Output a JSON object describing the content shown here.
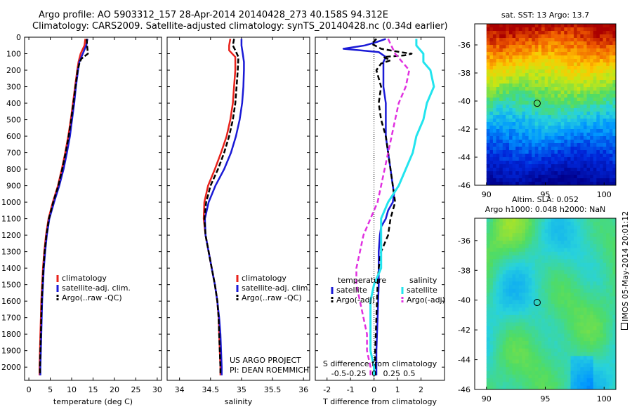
{
  "header": {
    "title_line1": "Argo profile: AO 5903312_157 28-Apr-2014 20140428_273 40.158S 94.312E",
    "title_line2": "Climatology: CARS2009. Satellite-adjusted climatology: synTS_20140428.nc (0.34d earlier)"
  },
  "colors": {
    "climatology": "#e8221b",
    "satellite": "#1a1ad6",
    "argo": "#000000",
    "cyan": "#22e4ee",
    "magenta": "#e030e0"
  },
  "chart_data": [
    {
      "type": "line",
      "panel": "temperature",
      "xlabel": "temperature (deg C)",
      "ylabel": "",
      "xlim": [
        -1,
        31
      ],
      "ylim": [
        2080,
        0
      ],
      "y_reversed": true,
      "xticks": [
        0,
        5,
        10,
        15,
        20,
        25,
        30
      ],
      "yticks": [
        0,
        100,
        200,
        300,
        400,
        500,
        600,
        700,
        800,
        900,
        1000,
        1100,
        1200,
        1300,
        1400,
        1500,
        1600,
        1700,
        1800,
        1900,
        2000
      ],
      "legend": [
        "climatology",
        "satellite-adj. clim.",
        "Argo(..raw -QC)"
      ],
      "series": [
        {
          "name": "climatology",
          "y": [
            10,
            50,
            100,
            150,
            200,
            300,
            400,
            500,
            600,
            700,
            800,
            900,
            1000,
            1100,
            1200,
            1300,
            1400,
            1500,
            1600,
            1700,
            1800,
            1900,
            2000,
            2050
          ],
          "x": [
            13.2,
            13.0,
            12.1,
            11.6,
            11.3,
            10.8,
            10.3,
            9.8,
            9.2,
            8.5,
            7.7,
            6.8,
            5.6,
            4.6,
            4.0,
            3.6,
            3.3,
            3.1,
            2.9,
            2.8,
            2.7,
            2.6,
            2.5,
            2.5
          ]
        },
        {
          "name": "satellite-adj. clim.",
          "y": [
            10,
            50,
            100,
            150,
            200,
            300,
            400,
            500,
            600,
            700,
            800,
            900,
            1000,
            1100,
            1200,
            1300,
            1400,
            1500,
            1600,
            1700,
            1800,
            1900,
            2000,
            2050
          ],
          "x": [
            13.7,
            13.4,
            12.6,
            11.8,
            11.5,
            11.0,
            10.6,
            10.1,
            9.6,
            8.9,
            8.1,
            7.1,
            5.9,
            4.8,
            4.2,
            3.8,
            3.5,
            3.3,
            3.1,
            3.0,
            2.9,
            2.8,
            2.7,
            2.7
          ]
        },
        {
          "name": "Argo(..raw -QC)",
          "y": [
            10,
            50,
            100,
            130,
            150,
            200,
            300,
            400,
            500,
            600,
            700,
            800,
            900,
            1000,
            1100,
            1200,
            1300,
            1400,
            1500,
            1600,
            1700,
            1800,
            1900,
            2000,
            2050
          ],
          "x": [
            13.5,
            13.6,
            13.8,
            12.3,
            11.9,
            11.4,
            10.9,
            10.4,
            9.9,
            9.3,
            8.6,
            7.8,
            6.9,
            5.7,
            4.7,
            4.1,
            3.7,
            3.4,
            3.2,
            3.0,
            2.9,
            2.8,
            2.7,
            2.6,
            2.6
          ]
        }
      ]
    },
    {
      "type": "line",
      "panel": "salinity",
      "xlabel": "salinity",
      "xlim": [
        33.8,
        36.1
      ],
      "ylim": [
        2080,
        0
      ],
      "y_reversed": true,
      "xticks": [
        34,
        34.5,
        35,
        35.5,
        36
      ],
      "legend": [
        "climatology",
        "satellite-adj. clim.",
        "Argo(..raw -QC)"
      ],
      "series": [
        {
          "name": "climatology",
          "y": [
            10,
            50,
            80,
            120,
            200,
            300,
            400,
            500,
            600,
            700,
            800,
            900,
            1000,
            1100,
            1200,
            1300,
            1400,
            1500,
            1600,
            1700,
            1800,
            1900,
            2000,
            2050
          ],
          "x": [
            34.82,
            34.8,
            34.8,
            34.9,
            34.9,
            34.88,
            34.86,
            34.82,
            34.76,
            34.67,
            34.57,
            34.46,
            34.4,
            34.39,
            34.42,
            34.47,
            34.52,
            34.57,
            34.61,
            34.63,
            34.64,
            34.65,
            34.66,
            34.66
          ]
        },
        {
          "name": "satellite-adj. clim.",
          "y": [
            10,
            50,
            100,
            150,
            200,
            300,
            400,
            500,
            600,
            700,
            800,
            900,
            1000,
            1100,
            1200,
            1300,
            1400,
            1500,
            1600,
            1700,
            1800,
            1900,
            2000,
            2050
          ],
          "x": [
            35.0,
            35.0,
            35.02,
            35.04,
            35.04,
            35.03,
            35.01,
            34.97,
            34.91,
            34.83,
            34.72,
            34.58,
            34.47,
            34.41,
            34.42,
            34.47,
            34.52,
            34.57,
            34.61,
            34.64,
            34.66,
            34.67,
            34.68,
            34.68
          ]
        },
        {
          "name": "Argo(..raw -QC)",
          "y": [
            10,
            50,
            80,
            120,
            200,
            300,
            400,
            500,
            600,
            700,
            800,
            900,
            1000,
            1100,
            1200,
            1300,
            1400,
            1500,
            1600,
            1700,
            1800,
            1900,
            2000,
            2050
          ],
          "x": [
            34.88,
            34.86,
            34.9,
            34.95,
            34.94,
            34.92,
            34.9,
            34.86,
            34.8,
            34.72,
            34.62,
            34.5,
            34.43,
            34.4,
            34.42,
            34.47,
            34.52,
            34.57,
            34.61,
            34.63,
            34.64,
            34.65,
            34.66,
            34.66
          ]
        }
      ],
      "annotation": [
        "US ARGO PROJECT",
        "PI: DEAN ROEMMICH"
      ]
    },
    {
      "type": "line",
      "panel": "differences",
      "xlabel": "T difference from climatology",
      "top_label": "S difference from climatology",
      "xlim": [
        -2.5,
        3.0
      ],
      "ylim": [
        2080,
        0
      ],
      "y_reversed": true,
      "xticks": [
        -2,
        -1,
        0,
        1,
        2
      ],
      "top_xticks": [
        "-0.5",
        "-0.25",
        "0",
        "0.25",
        "0.5"
      ],
      "legend_groups": [
        "temperature",
        "salinity"
      ],
      "legend": [
        "satellite",
        "Argo(-adj)",
        "satellite",
        "Argo(-adj)"
      ],
      "series": [
        {
          "name": "satellite",
          "y": [
            10,
            30,
            50,
            70,
            90,
            120,
            150,
            200,
            300,
            400,
            500,
            600,
            700,
            800,
            900,
            950,
            1000,
            1050,
            1100,
            1150,
            1200,
            1300,
            1400,
            1500,
            1700,
            1900,
            2050
          ],
          "x": [
            0.5,
            0.1,
            -0.4,
            -1.3,
            0.2,
            0.5,
            0.4,
            0.4,
            0.4,
            0.5,
            0.5,
            0.5,
            0.6,
            0.7,
            0.8,
            0.85,
            0.8,
            0.6,
            0.5,
            0.3,
            0.25,
            0.2,
            0.2,
            0.2,
            0.15,
            0.1,
            0.1
          ]
        },
        {
          "name": "Argo(-adj)",
          "y": [
            10,
            40,
            70,
            90,
            100,
            110,
            120,
            140,
            160,
            200,
            300,
            400,
            500,
            600,
            700,
            800,
            900,
            1000,
            1100,
            1200,
            1300,
            1400,
            1500,
            1700,
            1900,
            2050
          ],
          "x": [
            0.1,
            -0.1,
            0.3,
            1.1,
            1.6,
            1.3,
            0.4,
            0.7,
            0.3,
            0.1,
            0.3,
            0.2,
            0.3,
            0.5,
            0.6,
            0.7,
            0.8,
            0.9,
            0.7,
            0.6,
            0.3,
            0.2,
            0.15,
            0.1,
            0.05,
            0.05
          ]
        },
        {
          "name": "satellite",
          "y": [
            10,
            50,
            100,
            150,
            200,
            300,
            400,
            500,
            600,
            700,
            800,
            900,
            1000,
            1100,
            1200,
            1300,
            1400,
            1500,
            1600,
            1700,
            1800,
            1900,
            2000,
            2050
          ],
          "x": [
            0.6,
            0.6,
            0.7,
            0.7,
            0.8,
            0.85,
            0.75,
            0.7,
            0.6,
            0.55,
            0.45,
            0.35,
            0.2,
            0.1,
            0.1,
            0.1,
            0.1,
            0.0,
            -0.05,
            -0.05,
            -0.05,
            -0.05,
            0.0,
            0.0
          ]
        },
        {
          "name": "Argo(-adj)",
          "y": [
            10,
            100,
            200,
            300,
            400,
            500,
            600,
            700,
            800,
            900,
            1000,
            1100,
            1200,
            1300,
            1400,
            1500,
            1600,
            1700,
            1800,
            1900,
            2000,
            2050
          ],
          "x": [
            0.2,
            0.3,
            0.5,
            0.45,
            0.35,
            0.3,
            0.25,
            0.2,
            0.15,
            0.1,
            0.05,
            -0.05,
            -0.15,
            -0.2,
            -0.25,
            -0.25,
            -0.2,
            -0.15,
            -0.1,
            -0.1,
            -0.05,
            -0.05
          ]
        }
      ]
    },
    {
      "type": "heatmap",
      "panel": "sst",
      "title": "sat. SST: 13 Argo: 13.7",
      "xlim": [
        89,
        101
      ],
      "ylim": [
        -46,
        -34.5
      ],
      "xticks": [
        90,
        95,
        100
      ],
      "yticks": [
        -36,
        -38,
        -40,
        -42,
        -44,
        -46
      ],
      "marker": {
        "lon": 94.312,
        "lat": -40.158
      }
    },
    {
      "type": "heatmap",
      "panel": "sla",
      "title_line1": "Altim. SLA: 0.052",
      "title_line2": "Argo h1000: 0.048 h2000: NaN",
      "xlim": [
        89,
        101
      ],
      "ylim": [
        -46,
        -34.5
      ],
      "xticks": [
        90,
        95,
        100
      ],
      "yticks": [
        -36,
        -38,
        -40,
        -42,
        -44,
        -46
      ],
      "marker": {
        "lon": 94.312,
        "lat": -40.158
      }
    }
  ],
  "sidebar": {
    "imos_stamp": "IMOS 05-May-2014 20:01:12"
  }
}
